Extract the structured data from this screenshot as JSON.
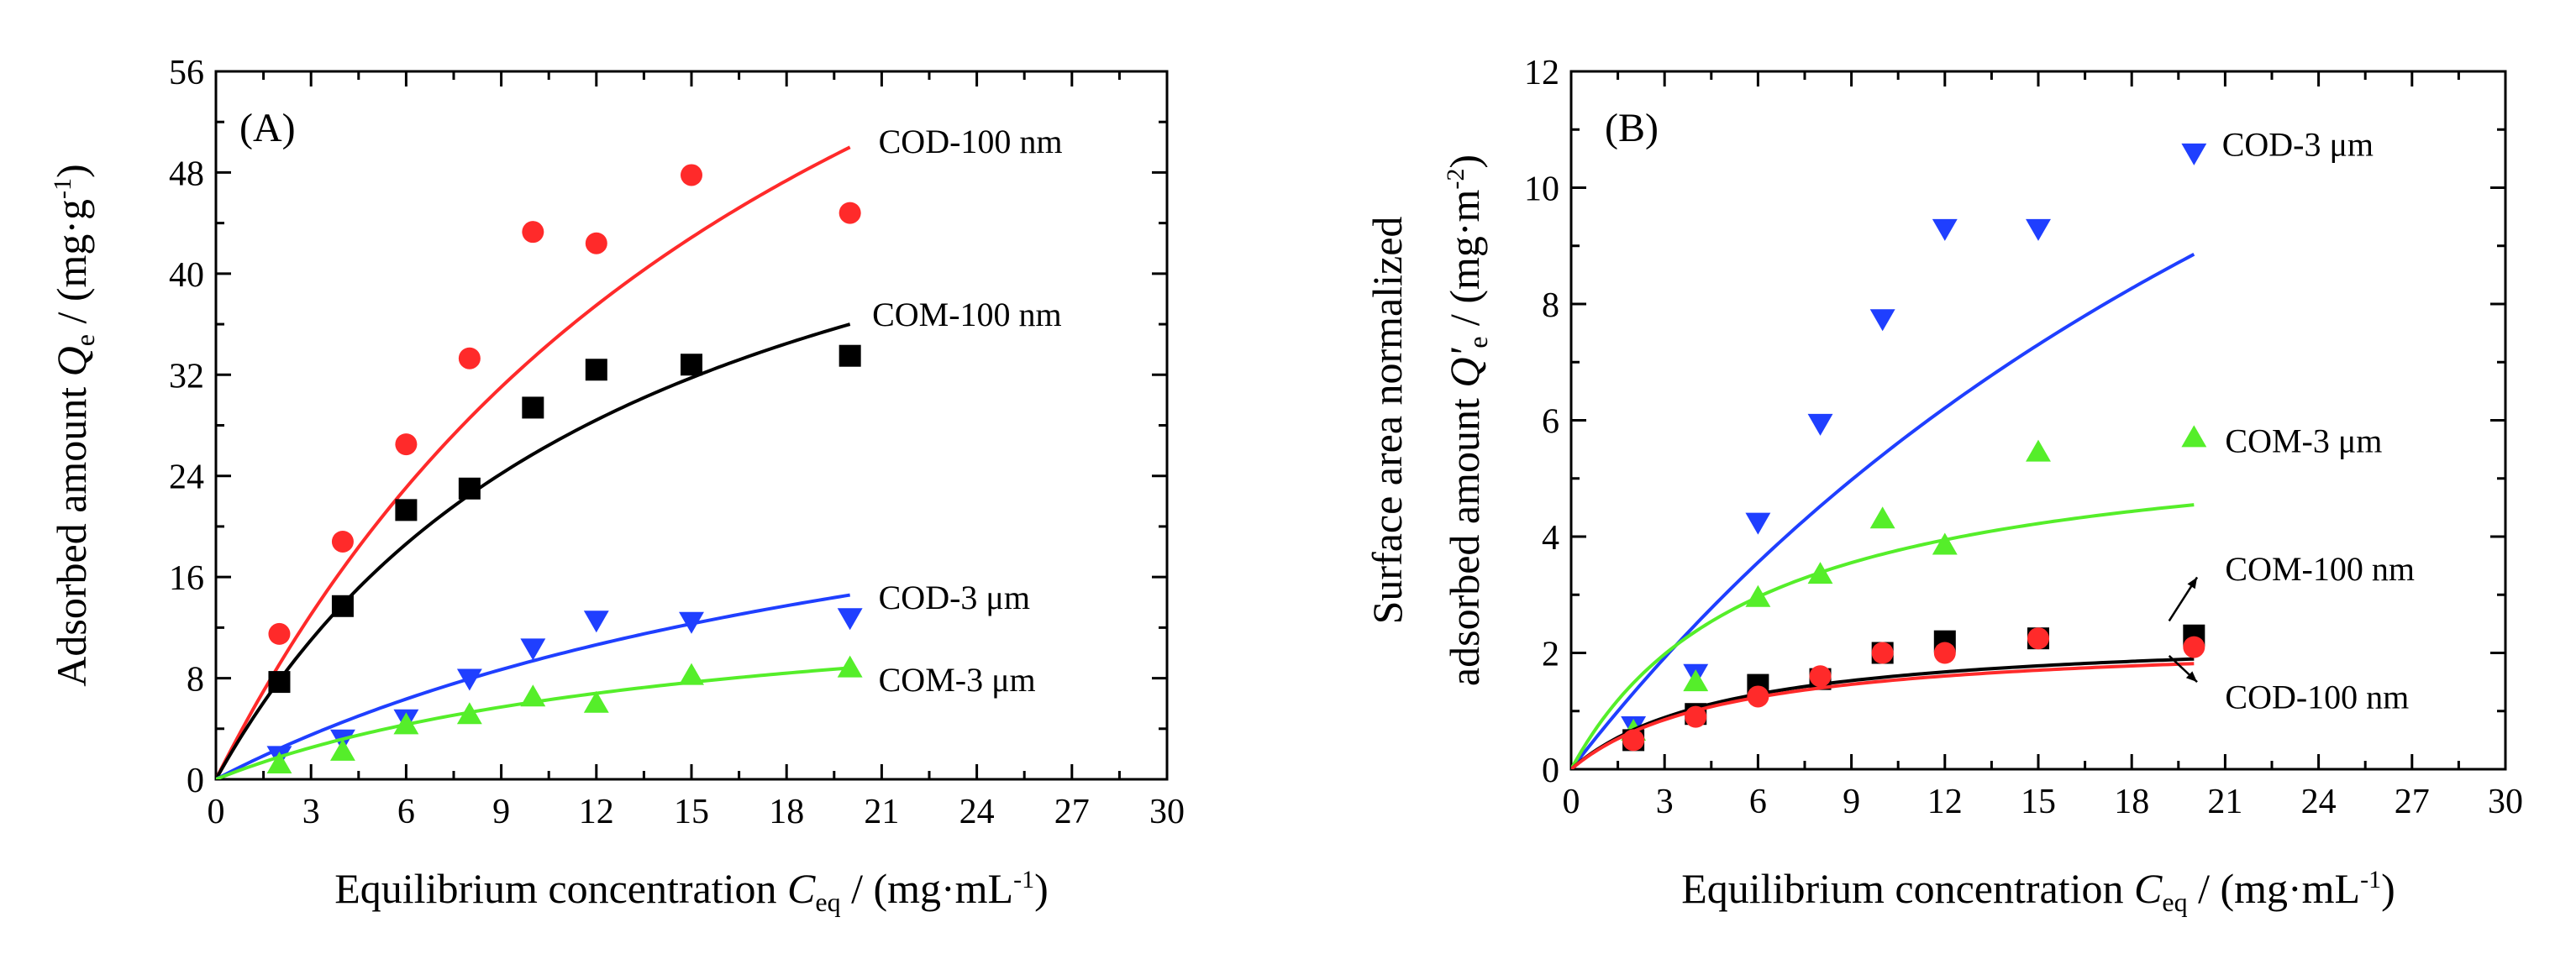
{
  "chart_data": [
    {
      "type": "scatter",
      "panel_label": "(A)",
      "xlabel": {
        "main": "Equilibrium concentration ",
        "var": "C",
        "sub": "eq",
        "unit": " / (mg·mL",
        "sup": "-1",
        "close": ")"
      },
      "ylabel": {
        "main": "Adsorbed amount ",
        "var": "Q",
        "sub": "e",
        "unit": " / (mg·g",
        "sup": "-1",
        "close": ")"
      },
      "xlim": [
        0,
        30
      ],
      "ylim": [
        0,
        56
      ],
      "xticks": [
        0,
        3,
        6,
        9,
        12,
        15,
        18,
        21,
        24,
        27,
        30
      ],
      "yticks": [
        0,
        8,
        16,
        24,
        32,
        40,
        48,
        56
      ],
      "xtick_labels": [
        "0",
        "3",
        "6",
        "9",
        "12",
        "15",
        "18",
        "21",
        "24",
        "27",
        "30"
      ],
      "ytick_labels": [
        "0",
        "8",
        "16",
        "24",
        "32",
        "40",
        "48",
        "56"
      ],
      "series": [
        {
          "name": "COD-100 nm",
          "color": "#ff2a2a",
          "marker": "circle",
          "x": [
            2,
            4,
            6,
            8,
            10,
            12,
            15,
            20
          ],
          "y": [
            11.5,
            18.8,
            26.5,
            33.3,
            43.3,
            42.4,
            47.8,
            44.8
          ],
          "fit": {
            "qmax": 100,
            "k": 0.05
          }
        },
        {
          "name": "COM-100 nm",
          "color": "#000000",
          "marker": "square",
          "x": [
            2,
            4,
            6,
            8,
            10,
            12,
            15,
            20
          ],
          "y": [
            7.7,
            13.7,
            21.3,
            23.0,
            29.4,
            32.4,
            32.8,
            33.5
          ],
          "fit": {
            "qmax": 60,
            "k": 0.075
          }
        },
        {
          "name": "COD-3 μm",
          "color": "#1f3fff",
          "marker": "triangle-down",
          "x": [
            2,
            4,
            6,
            8,
            10,
            12,
            15,
            20
          ],
          "y": [
            1.9,
            3.2,
            4.8,
            8.0,
            10.4,
            12.6,
            12.5,
            12.8
          ],
          "fit": {
            "qmax": 32.8,
            "k": 0.04
          }
        },
        {
          "name": "COM-3 μm",
          "color": "#55ee2a",
          "marker": "triangle-up",
          "x": [
            2,
            4,
            6,
            8,
            10,
            12,
            15,
            20
          ],
          "y": [
            1.2,
            2.2,
            4.3,
            5.1,
            6.5,
            6.0,
            8.2,
            8.8
          ],
          "fit": {
            "qmax": 15.8,
            "k": 0.063
          }
        }
      ],
      "annotations": [
        {
          "text": "COD-100 nm",
          "x": 20.9,
          "y": 50.5
        },
        {
          "text": "COM-100 nm",
          "x": 20.7,
          "y": 36.8
        },
        {
          "text": "COD-3 μm",
          "x": 20.9,
          "y": 14.4
        },
        {
          "text": "COM-3 μm",
          "x": 20.9,
          "y": 7.9
        }
      ]
    },
    {
      "type": "scatter",
      "panel_label": "(B)",
      "xlabel": {
        "main": "Equilibrium concentration ",
        "var": "C",
        "sub": "eq",
        "unit": " / (mg·mL",
        "sup": "-1",
        "close": ")"
      },
      "ylabel": {
        "line1": "Surface area normalized",
        "main": "adsorbed amount ",
        "var": "Q'",
        "sub": "e",
        "unit": " / (mg·m",
        "sup": "-2",
        "close": ")"
      },
      "xlim": [
        0,
        30
      ],
      "ylim": [
        0,
        12
      ],
      "xticks": [
        0,
        3,
        6,
        9,
        12,
        15,
        18,
        21,
        24,
        27,
        30
      ],
      "yticks": [
        0,
        2,
        4,
        6,
        8,
        10,
        12
      ],
      "xtick_labels": [
        "0",
        "3",
        "6",
        "9",
        "12",
        "15",
        "18",
        "21",
        "24",
        "27",
        "30"
      ],
      "ytick_labels": [
        "0",
        "2",
        "4",
        "6",
        "8",
        "10",
        "12"
      ],
      "series": [
        {
          "name": "COD-3 μm",
          "color": "#1f3fff",
          "marker": "triangle-down",
          "x": [
            2,
            4,
            6,
            8,
            10,
            12,
            15,
            20
          ],
          "y": [
            0.75,
            1.65,
            4.25,
            5.95,
            7.75,
            9.3,
            9.3,
            10.6
          ],
          "fit": {
            "qmax": 24.5,
            "k": 0.0283
          }
        },
        {
          "name": "COM-3 μm",
          "color": "#55ee2a",
          "marker": "triangle-up",
          "x": [
            2,
            4,
            6,
            8,
            10,
            12,
            15,
            20
          ],
          "y": [
            0.65,
            1.5,
            2.95,
            3.35,
            4.3,
            3.85,
            5.45,
            5.7
          ],
          "fit": {
            "qmax": 5.9,
            "k": 0.168
          }
        },
        {
          "name": "COM-100 nm",
          "color": "#000000",
          "marker": "square",
          "x": [
            2,
            4,
            6,
            8,
            10,
            12,
            15,
            20
          ],
          "y": [
            0.5,
            0.95,
            1.45,
            1.55,
            2.0,
            2.2,
            2.25,
            2.3
          ],
          "fit": {
            "qmax": 2.37,
            "k": 0.2
          }
        },
        {
          "name": "COD-100 nm",
          "color": "#ff2a2a",
          "marker": "circle",
          "x": [
            2,
            4,
            6,
            8,
            10,
            12,
            15,
            20
          ],
          "y": [
            0.5,
            0.9,
            1.25,
            1.6,
            2.0,
            2.0,
            2.25,
            2.1
          ],
          "fit": {
            "qmax": 2.27,
            "k": 0.2
          }
        }
      ],
      "annotations": [
        {
          "text": "COD-3 μm",
          "x": 20.9,
          "y": 10.75
        },
        {
          "text": "COM-3 μm",
          "x": 21.0,
          "y": 5.65
        },
        {
          "text": "COM-100 nm",
          "x": 21.0,
          "y": 3.45
        },
        {
          "text": "COD-100 nm",
          "x": 21.0,
          "y": 1.25
        }
      ]
    }
  ]
}
